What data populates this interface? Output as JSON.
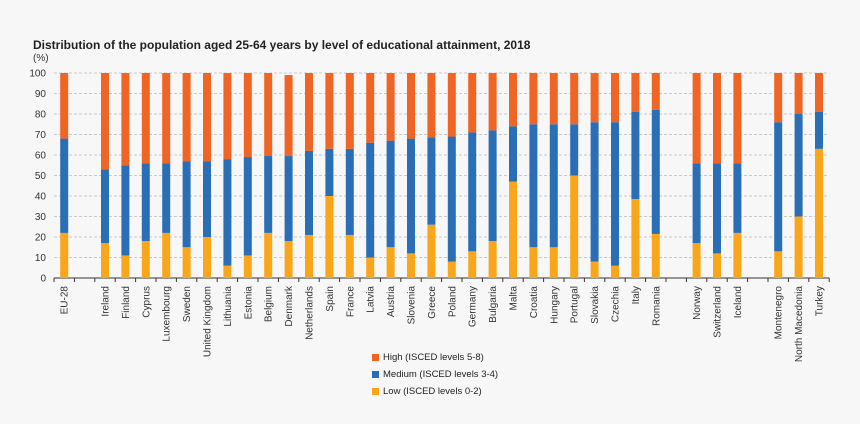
{
  "chart_data": {
    "type": "bar",
    "stacked": true,
    "title": "Distribution of the population aged 25-64 years by level of educational attainment, 2018",
    "ylabel": "(%)",
    "ylim": [
      0,
      100
    ],
    "yticks": [
      0,
      10,
      20,
      30,
      40,
      50,
      60,
      70,
      80,
      90,
      100
    ],
    "grid": true,
    "legend_position": "bottom",
    "categories": [
      "EU-28",
      "",
      "Ireland",
      "Finland",
      "Cyprus",
      "Luxembourg",
      "Sweden",
      "United Kingdom",
      "Lithuania",
      "Estonia",
      "Belgium",
      "Denmark",
      "Netherlands",
      "Spain",
      "France",
      "Latvia",
      "Austria",
      "Slovenia",
      "Greece",
      "Poland",
      "Germany",
      "Bulgaria",
      "Malta",
      "Croatia",
      "Hungary",
      "Portugal",
      "Slovakia",
      "Czechia",
      "Italy",
      "Romania",
      "",
      "Norway",
      "Switzerland",
      "Iceland",
      "",
      "Montenegro",
      "North Macedonia",
      "Turkey"
    ],
    "series": [
      {
        "name": "Low (ISCED levels 0-2)",
        "color": "#faa61a",
        "values": [
          22,
          null,
          17,
          11,
          18,
          22,
          15,
          20,
          6,
          11,
          22,
          18,
          21,
          40,
          21,
          10,
          15,
          12,
          26,
          8,
          13,
          18,
          47,
          15,
          15,
          50,
          8,
          6,
          38.5,
          21.5,
          null,
          17,
          12,
          22,
          null,
          13,
          30,
          63
        ]
      },
      {
        "name": "Medium (ISCED levels 3-4)",
        "color": "#2a6eb5",
        "values": [
          46,
          null,
          36,
          44,
          38,
          34,
          42,
          37,
          52,
          48,
          37.5,
          41.5,
          41,
          23,
          42,
          56,
          52,
          56,
          42.5,
          61,
          58,
          54,
          27,
          60,
          60,
          25,
          68,
          70,
          42.5,
          60.5,
          null,
          39,
          44,
          34,
          null,
          63,
          50,
          18
        ]
      },
      {
        "name": "High (ISCED levels 5-8)",
        "color": "#f06424",
        "values": [
          32,
          null,
          47,
          45,
          44,
          44,
          43,
          43,
          42,
          41,
          40.5,
          39.5,
          38,
          37,
          37,
          34,
          33,
          32,
          31.5,
          31,
          29,
          28,
          26,
          25,
          25,
          25,
          24,
          24,
          19,
          18,
          null,
          44,
          44,
          44,
          null,
          24,
          20,
          19
        ]
      }
    ]
  }
}
